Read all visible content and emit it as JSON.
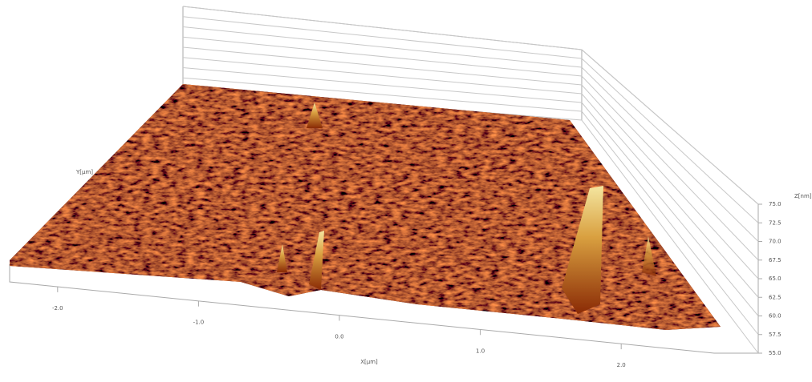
{
  "chart_data": {
    "type": "surface",
    "x_label": "X[µm]",
    "y_label": "Y[µm]",
    "z_label": "Z[nm]",
    "xlim": [
      -2.5,
      2.5
    ],
    "xticks": [
      {
        "value": -2,
        "label": "-2.0"
      },
      {
        "value": -1,
        "label": "-1.0"
      },
      {
        "value": 0,
        "label": "0.0"
      },
      {
        "value": 1,
        "label": "1.0"
      },
      {
        "value": 2,
        "label": "2.0"
      }
    ],
    "zlim": [
      55,
      75
    ],
    "zticks": [
      {
        "value": 75,
        "label": "75.0"
      },
      72.5,
      {
        "value": 70,
        "label": "70.0"
      },
      67.5,
      {
        "value": 65,
        "label": "65.0"
      },
      62.5,
      {
        "value": 60,
        "label": "60.0"
      },
      57.5,
      {
        "value": 55,
        "label": "55.0"
      }
    ],
    "grid": true
  }
}
